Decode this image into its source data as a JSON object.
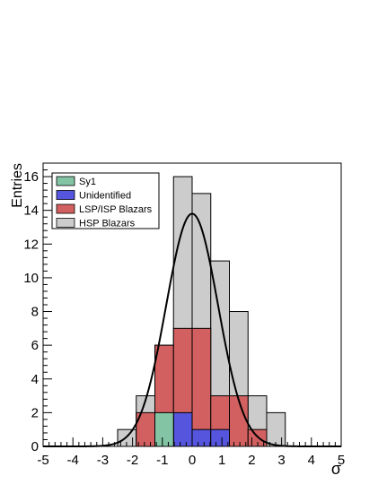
{
  "chart_data": {
    "type": "histogram",
    "xlabel": "σ",
    "ylabel": "Entries",
    "xlim": [
      -5,
      5
    ],
    "ylim": [
      0,
      16.8
    ],
    "x_ticks": [
      "-5",
      "-4",
      "-3",
      "-2",
      "-1",
      "0",
      "1",
      "2",
      "3",
      "4",
      "5"
    ],
    "y_ticks": [
      "0",
      "2",
      "4",
      "6",
      "8",
      "10",
      "12",
      "14",
      "16"
    ],
    "bin_edges": [
      -2.5,
      -1.875,
      -1.25,
      -0.625,
      0.0,
      0.625,
      1.25,
      1.875,
      2.5,
      3.125
    ],
    "series": [
      {
        "name": "HSP Blazars",
        "color": "#cccccc",
        "values": [
          1,
          3,
          6,
          16,
          15,
          11,
          8,
          3,
          2
        ]
      },
      {
        "name": "LSP/ISP Blazars",
        "color": "#d26060",
        "values": [
          0,
          2,
          6,
          7,
          7,
          3,
          3,
          1,
          0
        ]
      },
      {
        "name": "Unidentified",
        "color": "#5555dd",
        "values": [
          0,
          0,
          0,
          2,
          1,
          1,
          0,
          0,
          0
        ]
      },
      {
        "name": "Sy1",
        "color": "#82c4a4",
        "values": [
          0,
          0,
          2,
          0,
          0,
          0,
          0,
          0,
          0
        ]
      }
    ],
    "legend_order": [
      "Sy1",
      "Unidentified",
      "LSP/ISP Blazars",
      "HSP Blazars"
    ],
    "fit_curve": {
      "type": "gaussian",
      "amplitude": 13.8,
      "mean": 0.0,
      "sigma": 0.87,
      "color": "#000000"
    },
    "legend_position": "top-left"
  }
}
